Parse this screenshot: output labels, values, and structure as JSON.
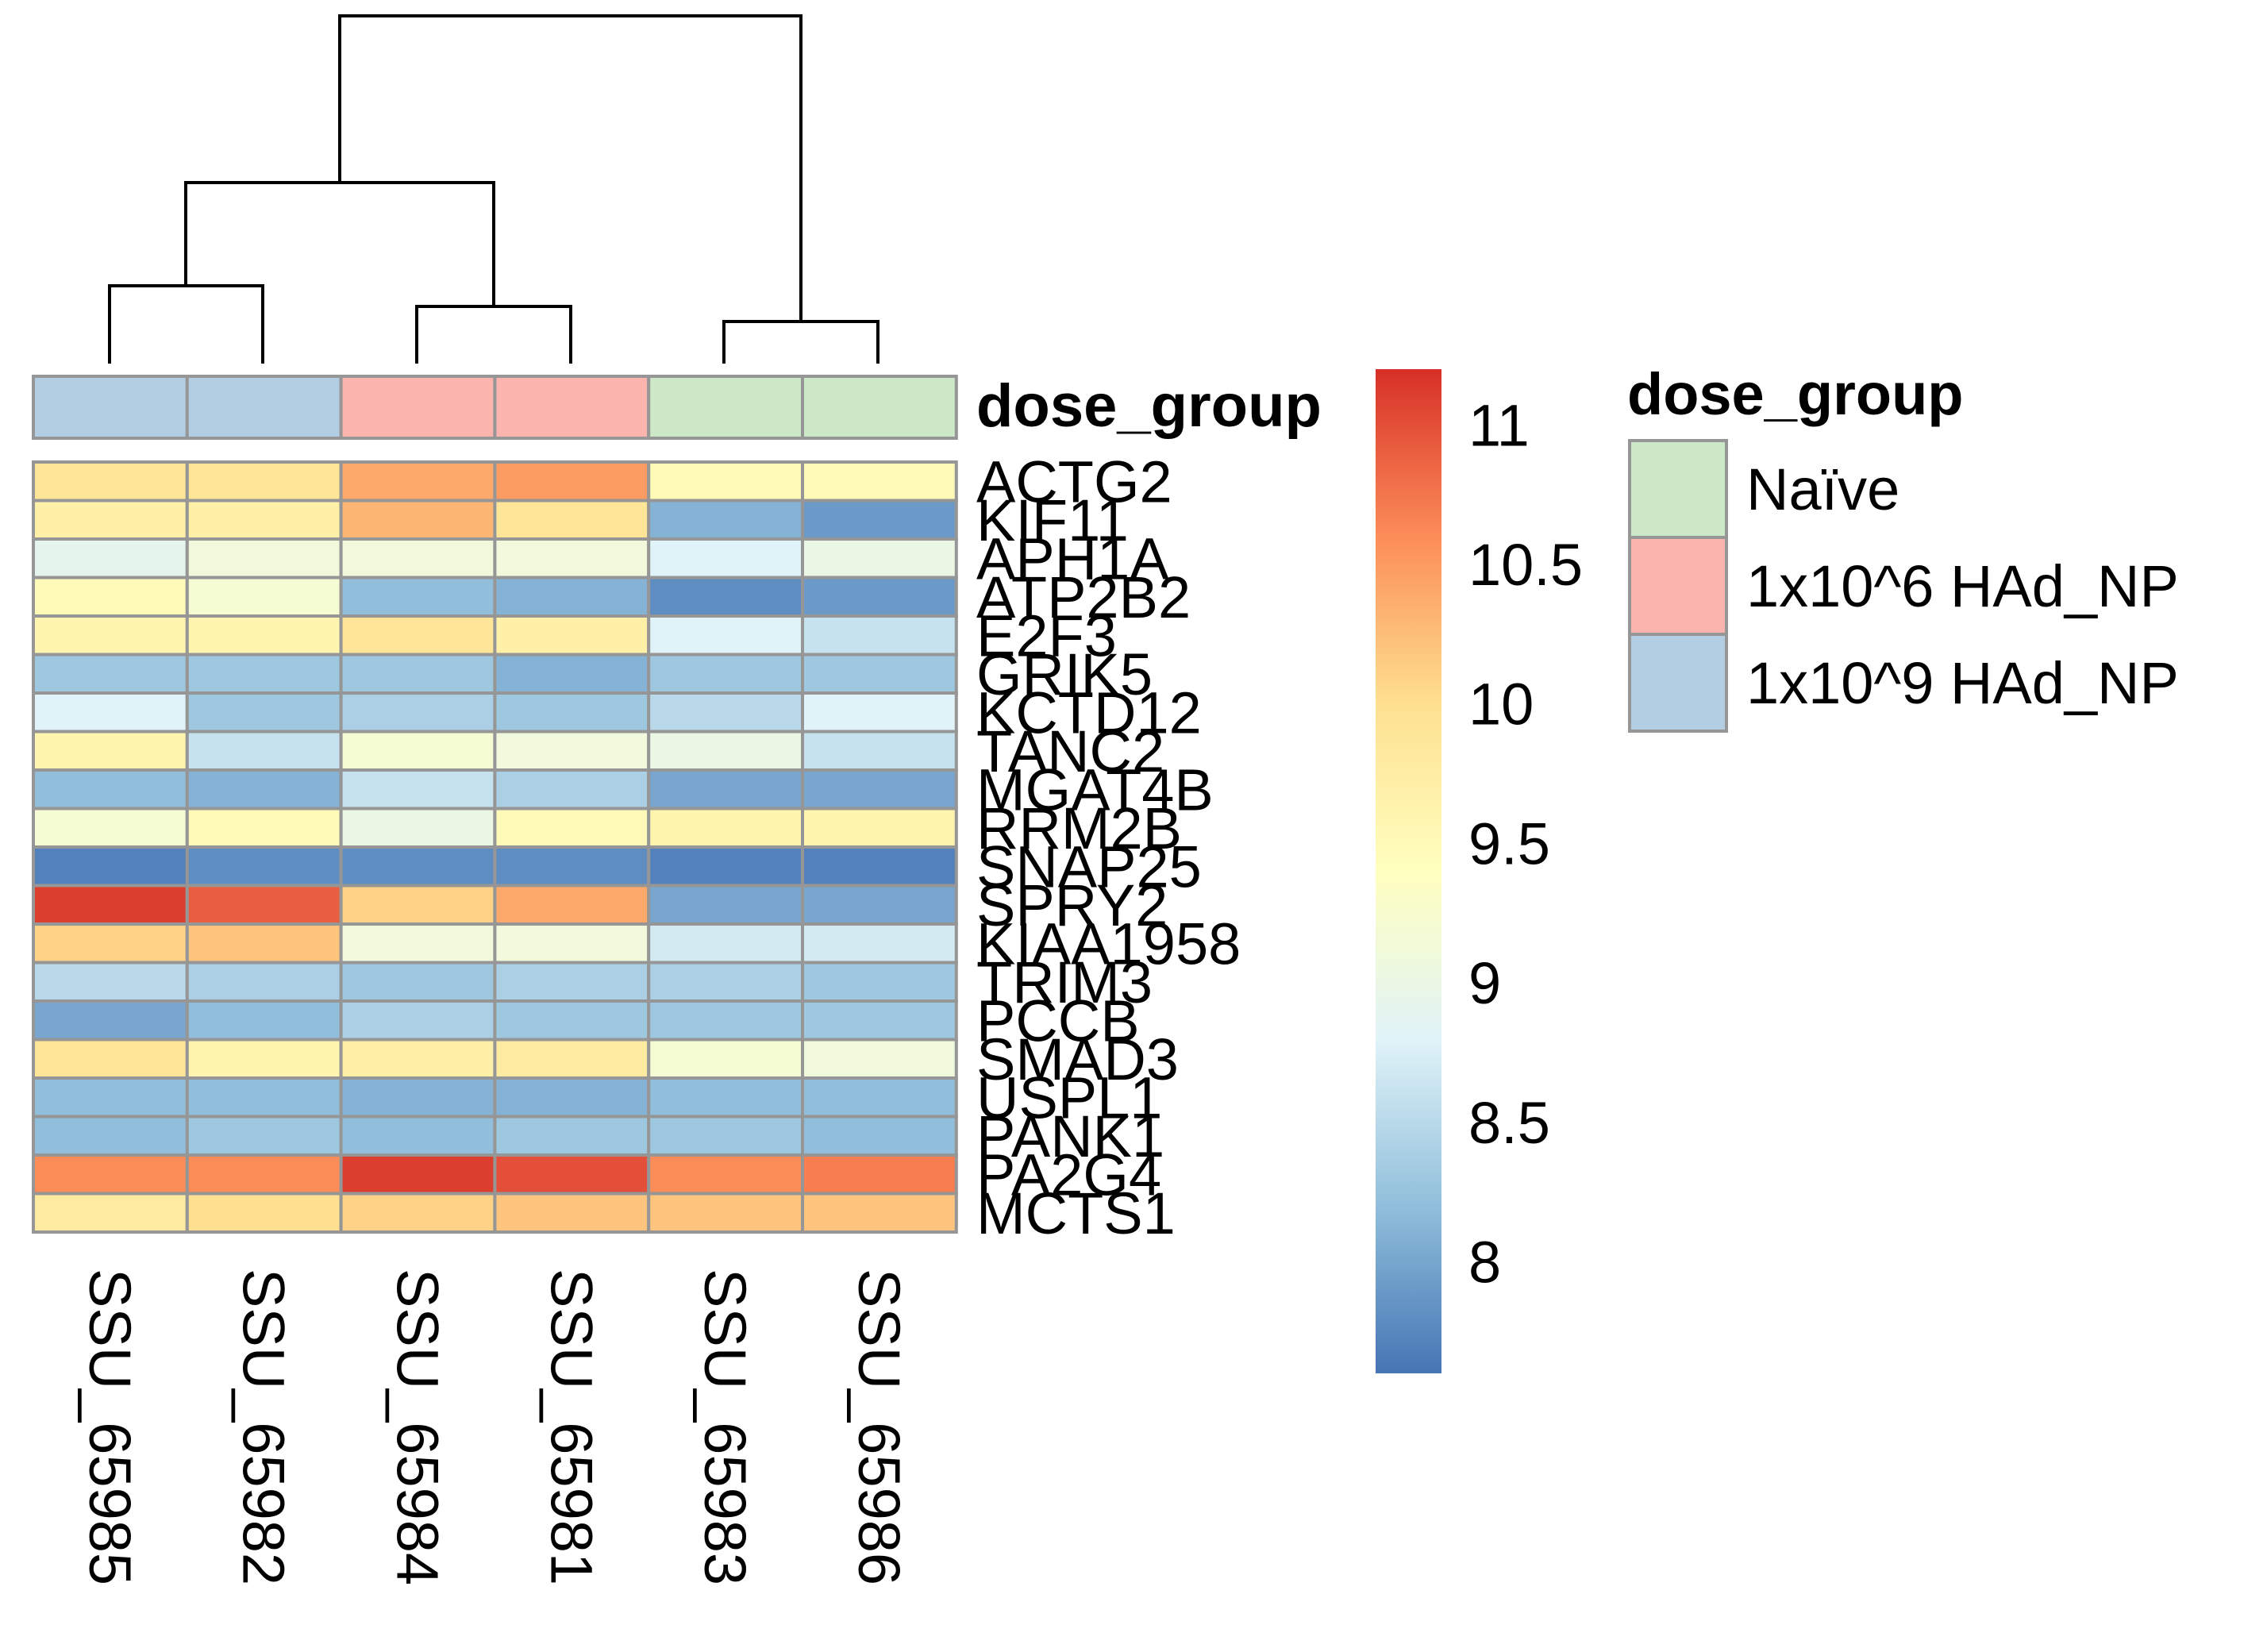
{
  "chart_data": {
    "type": "heatmap",
    "columns": [
      "SSU_65985",
      "SSU_65982",
      "SSU_65984",
      "SSU_65981",
      "SSU_65983",
      "SSU_65986"
    ],
    "rows": [
      "ACTG2",
      "KIF11",
      "APH1A",
      "ATP2B2",
      "E2F3",
      "GRIK5",
      "KCTD12",
      "TANC2",
      "MGAT4B",
      "RRM2B",
      "SNAP25",
      "SPRY2",
      "KIAA1958",
      "TRIM3",
      "PCCB",
      "SMAD3",
      "USPL1",
      "PANK1",
      "PA2G4",
      "MCTS1"
    ],
    "values": [
      [
        9.9,
        9.9,
        10.4,
        10.5,
        9.5,
        9.5
      ],
      [
        9.7,
        9.7,
        10.3,
        9.9,
        8.1,
        7.9
      ],
      [
        8.9,
        9.1,
        9.1,
        9.1,
        8.8,
        9.0
      ],
      [
        9.5,
        9.2,
        8.2,
        8.1,
        7.8,
        7.9
      ],
      [
        9.6,
        9.6,
        9.9,
        9.7,
        8.8,
        8.6
      ],
      [
        8.3,
        8.3,
        8.3,
        8.1,
        8.3,
        8.3
      ],
      [
        8.8,
        8.3,
        8.4,
        8.3,
        8.5,
        8.8
      ],
      [
        9.6,
        8.6,
        9.2,
        9.1,
        9.0,
        8.6
      ],
      [
        8.2,
        8.1,
        8.6,
        8.4,
        8.0,
        8.0
      ],
      [
        9.2,
        9.5,
        9.0,
        9.5,
        9.6,
        9.6
      ],
      [
        7.7,
        7.8,
        7.8,
        7.8,
        7.7,
        7.7
      ],
      [
        11.1,
        10.9,
        10.1,
        10.4,
        8.0,
        8.0
      ],
      [
        10.1,
        10.2,
        9.1,
        9.1,
        8.7,
        8.7
      ],
      [
        8.5,
        8.4,
        8.3,
        8.4,
        8.4,
        8.3
      ],
      [
        8.0,
        8.2,
        8.4,
        8.3,
        8.3,
        8.3
      ],
      [
        9.9,
        9.6,
        9.7,
        9.8,
        9.2,
        9.1
      ],
      [
        8.2,
        8.2,
        8.1,
        8.1,
        8.2,
        8.2
      ],
      [
        8.2,
        8.3,
        8.2,
        8.3,
        8.3,
        8.2
      ],
      [
        10.6,
        10.6,
        11.1,
        11.0,
        10.6,
        10.7
      ],
      [
        9.8,
        10.0,
        10.1,
        10.2,
        10.2,
        10.2
      ]
    ],
    "annotation": {
      "label": "dose_group",
      "column_groups": [
        "1x10^9 HAd_NP",
        "1x10^9 HAd_NP",
        "1x10^6 HAd_NP",
        "1x10^6 HAd_NP",
        "Naïve",
        "Naïve"
      ]
    },
    "colorbar": {
      "range": [
        7.6,
        11.2
      ],
      "ticks": [
        "11",
        "10.5",
        "10",
        "9.5",
        "9",
        "8.5",
        "8"
      ],
      "colors": [
        "#4575B4",
        "#91BFDB",
        "#E0F3F8",
        "#FFFFBF",
        "#FEE090",
        "#FC8D59",
        "#D73027"
      ]
    },
    "legend": {
      "title": "dose_group",
      "entries": [
        {
          "label": "Naïve",
          "color": "#CCE8C6"
        },
        {
          "label": "1x10^6 HAd_NP",
          "color": "#FBB4AE"
        },
        {
          "label": "1x10^9 HAd_NP",
          "color": "#B3CDE3"
        }
      ],
      "placement": "right"
    },
    "dendrogram": "column clustering"
  }
}
